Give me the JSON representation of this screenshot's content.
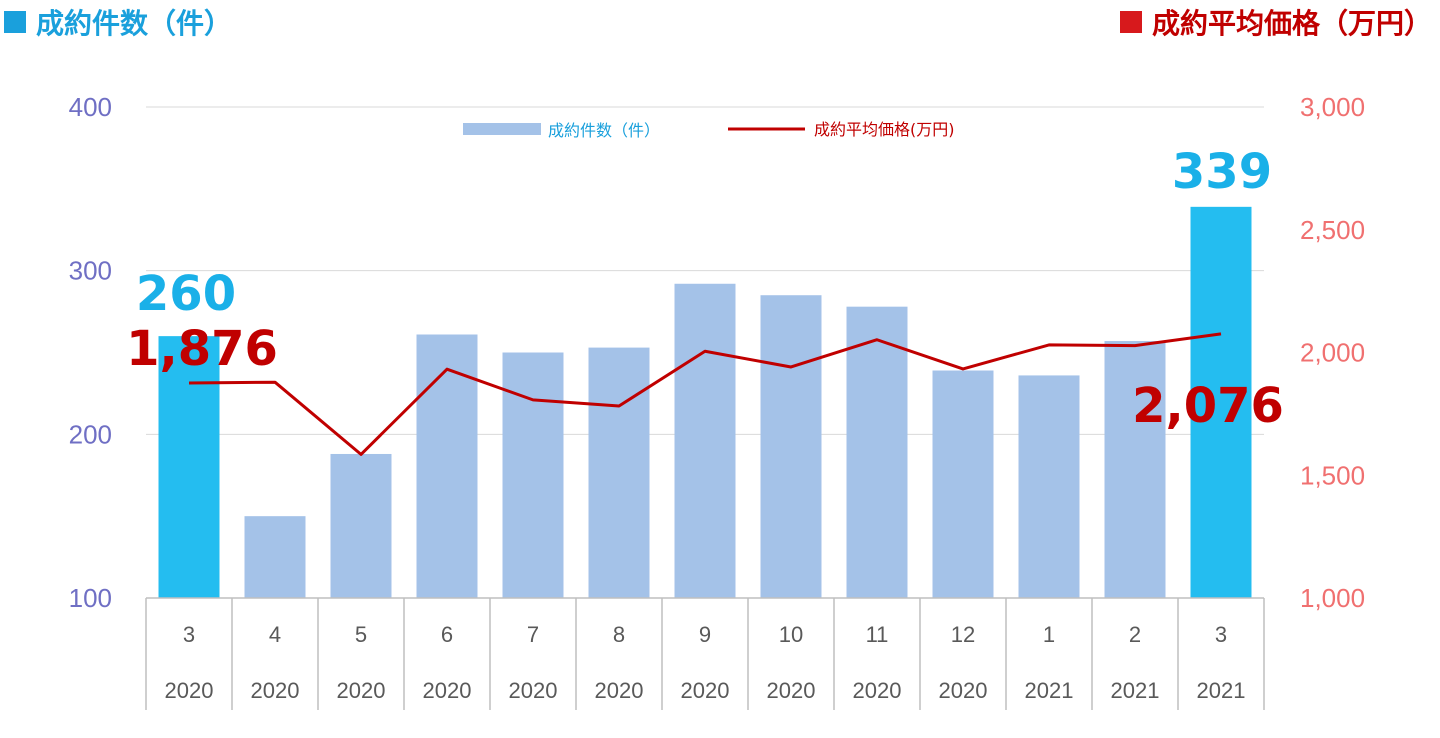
{
  "titles": {
    "left": "成約件数（件）",
    "right": "成約平均価格（万円）"
  },
  "legend": {
    "bars_label": "成約件数（件）",
    "line_label": "成約平均価格(万円)"
  },
  "colors": {
    "bar_default": "#a4c2e8",
    "bar_highlight": "#24bdf0",
    "line": "#c00000",
    "left_axis_text": "#6f6fc4",
    "right_axis_text": "#f07070"
  },
  "chart_data": {
    "type": "bar",
    "categories": [
      "3",
      "4",
      "5",
      "6",
      "7",
      "8",
      "9",
      "10",
      "11",
      "12",
      "1",
      "2",
      "3"
    ],
    "years": [
      "2020",
      "2020",
      "2020",
      "2020",
      "2020",
      "2020",
      "2020",
      "2020",
      "2020",
      "2020",
      "2021",
      "2021",
      "2021"
    ],
    "series": [
      {
        "name": "成約件数（件）",
        "type": "bar",
        "axis": "left",
        "values": [
          260,
          150,
          188,
          261,
          250,
          253,
          292,
          285,
          278,
          239,
          236,
          257,
          339
        ],
        "highlighted": [
          0,
          12
        ]
      },
      {
        "name": "成約平均価格(万円)",
        "type": "line",
        "axis": "right",
        "values": [
          1876,
          1879,
          1585,
          1932,
          1807,
          1782,
          2005,
          1941,
          2052,
          1933,
          2031,
          2028,
          2076
        ]
      }
    ],
    "y_left": {
      "ylim": [
        100,
        400
      ],
      "ticks": [
        "100",
        "200",
        "300",
        "400"
      ]
    },
    "y_right": {
      "ylim": [
        1000,
        3000
      ],
      "ticks": [
        "1,000",
        "1,500",
        "2,000",
        "2,500",
        "3,000"
      ]
    },
    "annotations": {
      "bar_first": "260",
      "bar_last": "339",
      "line_first": "1,876",
      "line_last": "2,076"
    },
    "grid": true,
    "legend_position": "top-center"
  }
}
